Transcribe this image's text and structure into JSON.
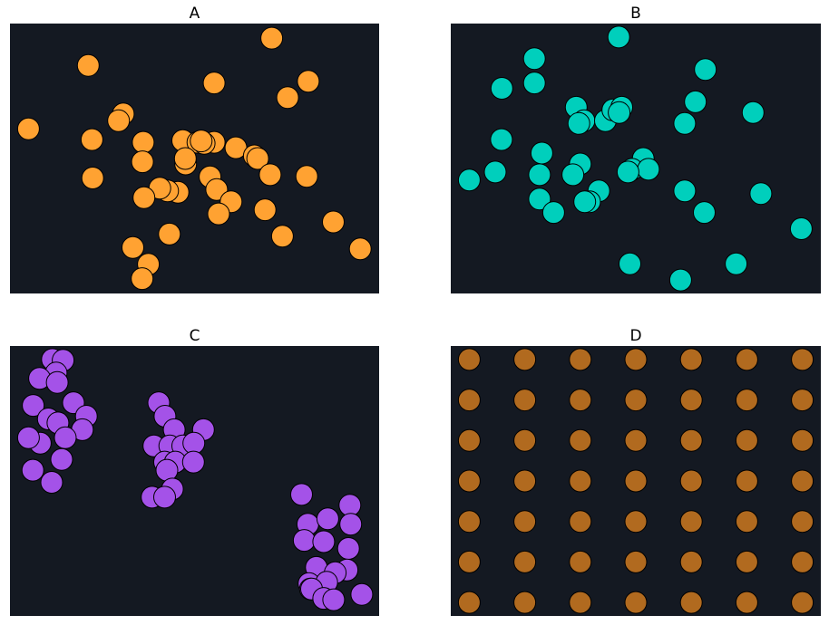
{
  "colors": {
    "background": "#141922",
    "edge": "#000000",
    "A": "#ffa232",
    "B": "#00cfbc",
    "C": "#a452e8",
    "D": "#b16a1f"
  },
  "chart_data": [
    {
      "type": "scatter",
      "title": "A",
      "axes_visible": false,
      "grid": false,
      "xlim": [
        0,
        1
      ],
      "ylim": [
        0,
        1
      ],
      "points": [
        [
          0.212,
          0.845
        ],
        [
          0.709,
          0.946
        ],
        [
          0.553,
          0.78
        ],
        [
          0.808,
          0.786
        ],
        [
          0.752,
          0.726
        ],
        [
          0.05,
          0.61
        ],
        [
          0.307,
          0.665
        ],
        [
          0.294,
          0.64
        ],
        [
          0.222,
          0.57
        ],
        [
          0.361,
          0.56
        ],
        [
          0.224,
          0.428
        ],
        [
          0.359,
          0.488
        ],
        [
          0.468,
          0.566
        ],
        [
          0.476,
          0.48
        ],
        [
          0.509,
          0.56
        ],
        [
          0.553,
          0.56
        ],
        [
          0.526,
          0.556
        ],
        [
          0.518,
          0.565
        ],
        [
          0.612,
          0.54
        ],
        [
          0.662,
          0.51
        ],
        [
          0.671,
          0.5
        ],
        [
          0.705,
          0.44
        ],
        [
          0.804,
          0.434
        ],
        [
          0.542,
          0.432
        ],
        [
          0.56,
          0.385
        ],
        [
          0.599,
          0.34
        ],
        [
          0.565,
          0.295
        ],
        [
          0.455,
          0.375
        ],
        [
          0.427,
          0.38
        ],
        [
          0.406,
          0.39
        ],
        [
          0.363,
          0.355
        ],
        [
          0.691,
          0.31
        ],
        [
          0.876,
          0.265
        ],
        [
          0.949,
          0.165
        ],
        [
          0.738,
          0.212
        ],
        [
          0.432,
          0.22
        ],
        [
          0.333,
          0.17
        ],
        [
          0.375,
          0.108
        ],
        [
          0.358,
          0.055
        ],
        [
          0.475,
          0.5
        ]
      ]
    },
    {
      "type": "scatter",
      "title": "B",
      "axes_visible": false,
      "grid": false,
      "xlim": [
        0,
        1
      ],
      "ylim": [
        0,
        1
      ],
      "points": [
        [
          0.454,
          0.95
        ],
        [
          0.226,
          0.87
        ],
        [
          0.688,
          0.83
        ],
        [
          0.138,
          0.76
        ],
        [
          0.226,
          0.78
        ],
        [
          0.817,
          0.67
        ],
        [
          0.339,
          0.69
        ],
        [
          0.36,
          0.64
        ],
        [
          0.346,
          0.63
        ],
        [
          0.418,
          0.64
        ],
        [
          0.438,
          0.68
        ],
        [
          0.462,
          0.69
        ],
        [
          0.455,
          0.67
        ],
        [
          0.661,
          0.71
        ],
        [
          0.632,
          0.63
        ],
        [
          0.137,
          0.57
        ],
        [
          0.246,
          0.52
        ],
        [
          0.35,
          0.48
        ],
        [
          0.33,
          0.44
        ],
        [
          0.24,
          0.44
        ],
        [
          0.12,
          0.45
        ],
        [
          0.05,
          0.42
        ],
        [
          0.52,
          0.5
        ],
        [
          0.49,
          0.46
        ],
        [
          0.534,
          0.46
        ],
        [
          0.479,
          0.45
        ],
        [
          0.4,
          0.38
        ],
        [
          0.632,
          0.38
        ],
        [
          0.838,
          0.37
        ],
        [
          0.24,
          0.35
        ],
        [
          0.375,
          0.34
        ],
        [
          0.362,
          0.34
        ],
        [
          0.278,
          0.3
        ],
        [
          0.685,
          0.3
        ],
        [
          0.947,
          0.24
        ],
        [
          0.484,
          0.11
        ],
        [
          0.771,
          0.11
        ],
        [
          0.621,
          0.05
        ]
      ]
    },
    {
      "type": "scatter",
      "title": "C",
      "axes_visible": false,
      "grid": false,
      "xlim": [
        0,
        1
      ],
      "ylim": [
        0,
        1
      ],
      "points": [
        [
          0.115,
          0.95
        ],
        [
          0.144,
          0.947
        ],
        [
          0.125,
          0.9
        ],
        [
          0.08,
          0.88
        ],
        [
          0.128,
          0.865
        ],
        [
          0.063,
          0.78
        ],
        [
          0.172,
          0.79
        ],
        [
          0.104,
          0.73
        ],
        [
          0.13,
          0.715
        ],
        [
          0.207,
          0.74
        ],
        [
          0.196,
          0.69
        ],
        [
          0.15,
          0.66
        ],
        [
          0.082,
          0.64
        ],
        [
          0.05,
          0.66
        ],
        [
          0.14,
          0.58
        ],
        [
          0.062,
          0.54
        ],
        [
          0.113,
          0.495
        ],
        [
          0.403,
          0.79
        ],
        [
          0.42,
          0.74
        ],
        [
          0.445,
          0.69
        ],
        [
          0.524,
          0.69
        ],
        [
          0.39,
          0.63
        ],
        [
          0.433,
          0.63
        ],
        [
          0.468,
          0.63
        ],
        [
          0.498,
          0.64
        ],
        [
          0.419,
          0.57
        ],
        [
          0.448,
          0.57
        ],
        [
          0.497,
          0.57
        ],
        [
          0.425,
          0.54
        ],
        [
          0.44,
          0.47
        ],
        [
          0.385,
          0.44
        ],
        [
          0.419,
          0.44
        ],
        [
          0.79,
          0.45
        ],
        [
          0.921,
          0.41
        ],
        [
          0.807,
          0.34
        ],
        [
          0.861,
          0.36
        ],
        [
          0.923,
          0.34
        ],
        [
          0.797,
          0.28
        ],
        [
          0.85,
          0.275
        ],
        [
          0.917,
          0.25
        ],
        [
          0.913,
          0.17
        ],
        [
          0.83,
          0.18
        ],
        [
          0.81,
          0.12
        ],
        [
          0.881,
          0.16
        ],
        [
          0.858,
          0.125
        ],
        [
          0.814,
          0.1
        ],
        [
          0.953,
          0.08
        ],
        [
          0.817,
          0.1
        ],
        [
          0.85,
          0.065
        ],
        [
          0.877,
          0.06
        ]
      ]
    },
    {
      "type": "scatter",
      "title": "D",
      "axes_visible": false,
      "grid": false,
      "xlim": [
        0,
        1
      ],
      "ylim": [
        0,
        1
      ],
      "grid_points": {
        "x": [
          0.05,
          0.2,
          0.35,
          0.5,
          0.65,
          0.8,
          0.95
        ],
        "y": [
          0.95,
          0.8,
          0.65,
          0.5,
          0.35,
          0.2,
          0.05
        ]
      }
    }
  ]
}
